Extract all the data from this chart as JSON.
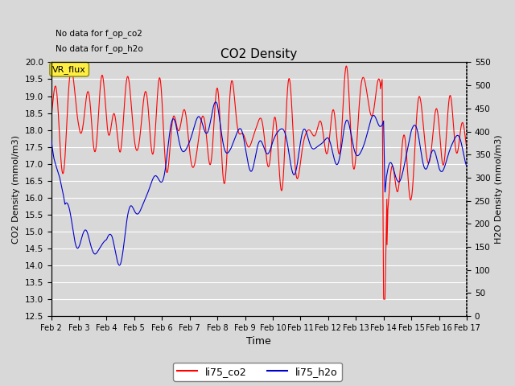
{
  "title": "CO2 Density",
  "xlabel": "Time",
  "ylabel_left": "CO2 Density (mmol/m3)",
  "ylabel_right": "H2O Density (mmol/m3)",
  "annotation1": "No data for f_op_co2",
  "annotation2": "No data for f_op_h2o",
  "vr_flux_label": "VR_flux",
  "legend_co2": "li75_co2",
  "legend_h2o": "li75_h2o",
  "co2_color": "#ff0000",
  "h2o_color": "#0000cc",
  "ylim_left": [
    12.5,
    20.0
  ],
  "ylim_right": [
    0,
    550
  ],
  "plot_bg_color": "#d8d8d8",
  "fig_bg_color": "#d8d8d8",
  "grid_color": "#ffffff",
  "x_start": 2,
  "x_end": 17,
  "x_ticks": [
    2,
    3,
    4,
    5,
    6,
    7,
    8,
    9,
    10,
    11,
    12,
    13,
    14,
    15,
    16,
    17
  ],
  "x_tick_labels": [
    "Feb 2",
    "Feb 3",
    "Feb 4",
    "Feb 5",
    "Feb 6",
    "Feb 7",
    "Feb 8",
    "Feb 9",
    "Feb 10",
    "Feb 11",
    "Feb 12",
    "Feb 13",
    "Feb 14",
    "Feb 15",
    "Feb 16",
    "Feb 17"
  ]
}
